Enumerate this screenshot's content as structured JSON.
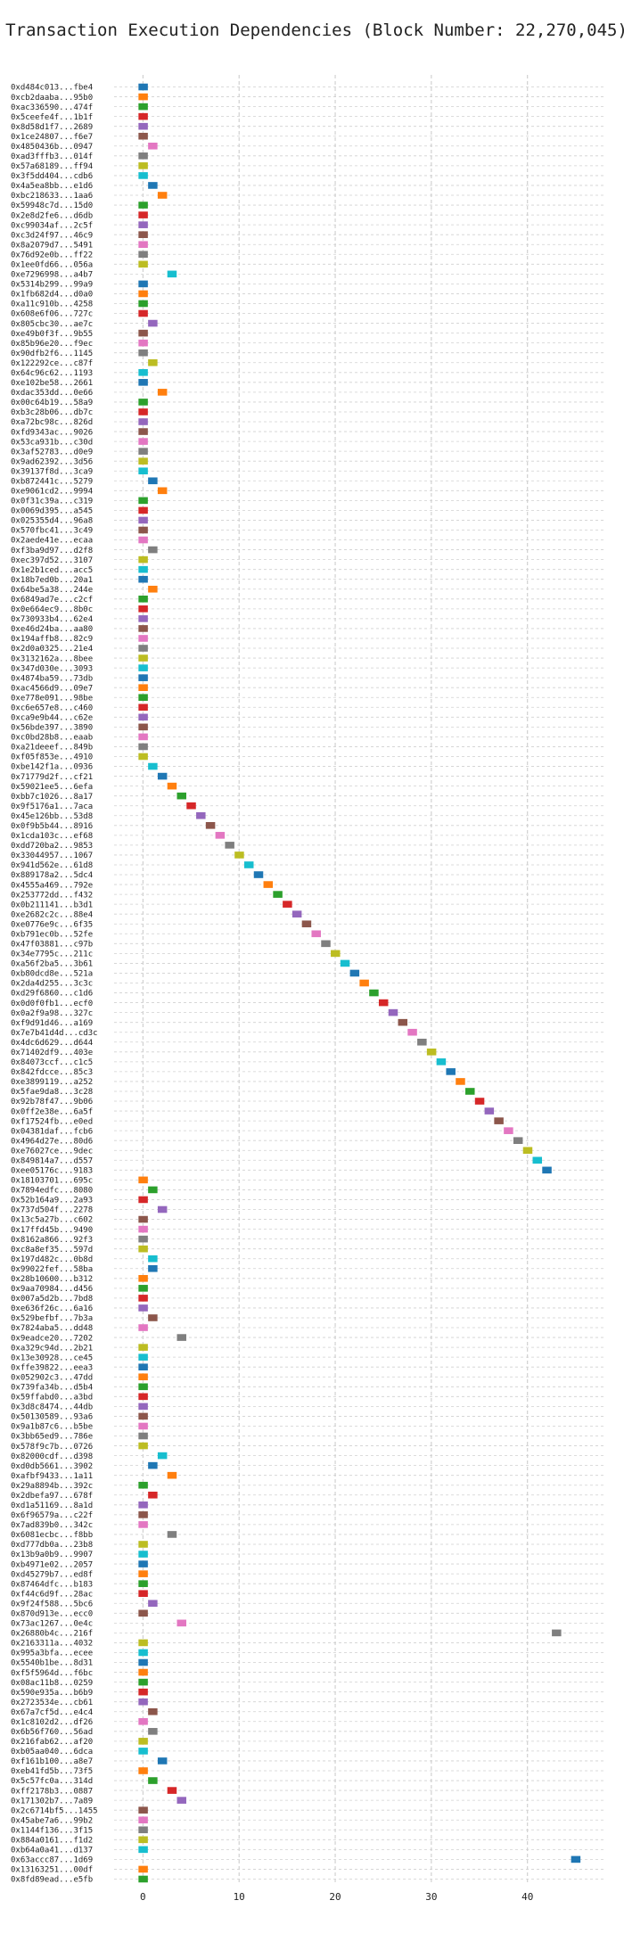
{
  "chart_data": {
    "type": "bar",
    "orientation": "horizontal",
    "title": "Transaction Execution Dependencies (Block Number: 22,270,045)",
    "xlabel": "",
    "ylabel": "",
    "xlim": [
      -3,
      48
    ],
    "xticks": [
      0,
      10,
      20,
      30,
      40
    ],
    "grid": true,
    "legend": "none",
    "palette": [
      "#1f77b4",
      "#ff7f0e",
      "#2ca02c",
      "#d62728",
      "#9467bd",
      "#8c564b",
      "#e377c2",
      "#7f7f7f",
      "#bcbd22",
      "#17becf"
    ],
    "categories": [
      "0xd484c013...fbe4",
      "0xcb2daaba...95b0",
      "0xac336590...474f",
      "0x5ceefe4f...1b1f",
      "0x8d58d1f7...2689",
      "0x1ce24807...f6e7",
      "0x4850436b...0947",
      "0xad3fffb3...014f",
      "0x57a68189...ff94",
      "0x3f5dd404...cdb6",
      "0x4a5ea8bb...e1d6",
      "0xbc218633...1aa6",
      "0x59948c7d...15d0",
      "0x2e8d2fe6...d6db",
      "0xc99034af...2c5f",
      "0xc3d24f97...46c9",
      "0x8a2079d7...5491",
      "0x76d92e0b...ff22",
      "0x1ee0fd66...056a",
      "0xe7296998...a4b7",
      "0x5314b299...99a9",
      "0x1fb682d4...d0a0",
      "0xa11c910b...4258",
      "0x608e6f06...727c",
      "0x805cbc30...ae7c",
      "0xe49b0f3f...9b55",
      "0x85b96e20...f9ec",
      "0x90dfb2f6...1145",
      "0x122292ce...c87f",
      "0x64c96c62...1193",
      "0xe102be58...2661",
      "0xdac353dd...0e66",
      "0x00c64b19...58a9",
      "0xb3c28b06...db7c",
      "0xa72bc98c...826d",
      "0xfd9343ac...9026",
      "0x53ca931b...c30d",
      "0x3af52783...d0e9",
      "0x9ad62392...3d56",
      "0x39137f8d...3ca9",
      "0xb872441c...5279",
      "0xe9061cd2...9994",
      "0x0f31c39a...c319",
      "0x0069d395...a545",
      "0x025355d4...96a8",
      "0x570fbc41...3c49",
      "0x2aede41e...ecaa",
      "0xf3ba9d97...d2f8",
      "0xec397d52...3107",
      "0x1e2b1ced...acc5",
      "0x18b7ed0b...20a1",
      "0x64be5a38...244e",
      "0x6849ad7e...c2cf",
      "0x0e664ec9...8b0c",
      "0x730933b4...62e4",
      "0xe46d24ba...aa80",
      "0x194affb8...82c9",
      "0x2d0a0325...21e4",
      "0x3132162a...8bee",
      "0x347d030e...3093",
      "0x4874ba59...73db",
      "0xac4566d9...09e7",
      "0xe778e091...98be",
      "0xc6e657e8...c460",
      "0xca9e9b44...c62e",
      "0x56bde397...3890",
      "0xc0bd28b8...eaab",
      "0xa21deeef...849b",
      "0xf05f853e...4910",
      "0xbe142f1a...0936",
      "0x71779d2f...cf21",
      "0x59021ee5...6efa",
      "0xbb7c1026...8a17",
      "0x9f5176a1...7aca",
      "0x45e126bb...53d8",
      "0x0f9b5b44...8916",
      "0x1cda103c...ef68",
      "0xdd720ba2...9853",
      "0x33044957...1067",
      "0x941d562e...61d8",
      "0x889178a2...5dc4",
      "0x4555a469...792e",
      "0x253772dd...f432",
      "0x0b211141...b3d1",
      "0xe2682c2c...88e4",
      "0xe0776e9c...6f35",
      "0xb791ec0b...52fe",
      "0x47f03881...c97b",
      "0x34e7795c...211c",
      "0xa56f2ba5...3b61",
      "0xb80dcd8e...521a",
      "0x2da4d255...3c3c",
      "0xd29f6860...c1d6",
      "0x0d0f0fb1...ecf0",
      "0x0a2f9a98...327c",
      "0xf9d91d46...a169",
      "0x7e7b41d4d...cd3c",
      "0x4dc6d629...d644",
      "0x71402df9...403e",
      "0x84073ccf...c1c5",
      "0x842fdcce...85c3",
      "0xe3899119...a252",
      "0x5fae9da8...3c28",
      "0x92b78f47...9b06",
      "0x0ff2e38e...6a5f",
      "0xf17524fb...e0ed",
      "0x04381daf...fcb6",
      "0x4964d27e...80d6",
      "0xe76027ce...9dec",
      "0x849814a7...d557",
      "0xee05176c...9183",
      "0x18103701...695c",
      "0x7894edfc...8080",
      "0x52b164a9...2a93",
      "0x737d504f...2278",
      "0x13c5a27b...c602",
      "0x17ffd45b...9490",
      "0x8162a866...92f3",
      "0xc8a8ef35...597d",
      "0x197d482c...0b8d",
      "0x99022fef...58ba",
      "0x28b10600...b312",
      "0x9aa70984...d456",
      "0x007a5d2b...7bd8",
      "0xe636f26c...6a16",
      "0x529befbf...7b3a",
      "0x7824aba5...dd48",
      "0x9eadce20...7202",
      "0xa329c94d...2b21",
      "0x13e30928...ce45",
      "0xffe39822...eea3",
      "0x052902c3...47dd",
      "0x739fa34b...d5b4",
      "0x59ffabd0...a3bd",
      "0x3d8c8474...44db",
      "0x50130589...93a6",
      "0x9a1b87c6...b5be",
      "0x3bb65ed9...786e",
      "0x578f9c7b...0726",
      "0x82000cdf...d398",
      "0xd0db5661...3902",
      "0xafbf9433...1a11",
      "0x29a8894b...392c",
      "0x2dbefa97...678f",
      "0xd1a51169...8a1d",
      "0x6f96579a...c22f",
      "0x7ad839b0...342c",
      "0x6081ecbc...f8bb",
      "0xd777db0a...23b8",
      "0x13b9a0b9...9907",
      "0xb4971e02...2057",
      "0xd45279b7...ed8f",
      "0x87464dfc...b183",
      "0xf44c6d9f...28ac",
      "0x9f24f588...5bc6",
      "0x870d913e...ecc0",
      "0x73ac1267...0e4c",
      "0x26880b4c...216f",
      "0x2163311a...4032",
      "0x995a3bfa...ecee",
      "0x5540b1be...8d31",
      "0xf5f5964d...f6bc",
      "0x08ac11b8...0259",
      "0x590e935a...b6b9",
      "0x2723534e...cb61",
      "0x67a7cf5d...e4c4",
      "0x1c8102d2...df26",
      "0x6b56f760...56ad",
      "0x216fab62...af20",
      "0xb05aa040...6dca",
      "0xf161b100...a8e7",
      "0xeb41fd5b...73f5",
      "0x5c57fc0a...314d",
      "0xff2178b3...0887",
      "0x171302b7...7a89",
      "0x2c6714bf5...1455",
      "0x45abe7a6...99b2",
      "0x1144f136...3f15",
      "0x884a0161...f1d2",
      "0xb64a0a41...d137",
      "0x63accc87...1d69",
      "0x13163251...00df",
      "0x8fd89ead...e5fb"
    ],
    "values": [
      0,
      0,
      0,
      0,
      0,
      0,
      1,
      0,
      0,
      0,
      1,
      2,
      0,
      0,
      0,
      0,
      0,
      0,
      0,
      3,
      0,
      0,
      0,
      0,
      1,
      0,
      0,
      0,
      1,
      0,
      0,
      2,
      0,
      0,
      0,
      0,
      0,
      0,
      0,
      0,
      1,
      2,
      0,
      0,
      0,
      0,
      0,
      1,
      0,
      0,
      0,
      1,
      0,
      0,
      0,
      0,
      0,
      0,
      0,
      0,
      0,
      0,
      0,
      0,
      0,
      0,
      0,
      0,
      0,
      1,
      2,
      3,
      4,
      5,
      6,
      7,
      8,
      9,
      10,
      11,
      12,
      13,
      14,
      15,
      16,
      17,
      18,
      19,
      20,
      21,
      22,
      23,
      24,
      25,
      26,
      27,
      28,
      29,
      30,
      31,
      32,
      33,
      34,
      35,
      36,
      37,
      38,
      39,
      40,
      41,
      42,
      0,
      1,
      0,
      2,
      0,
      0,
      0,
      0,
      1,
      1,
      0,
      0,
      0,
      0,
      1,
      0,
      4,
      0,
      0,
      0,
      0,
      0,
      0,
      0,
      0,
      0,
      0,
      0,
      2,
      1,
      3,
      0,
      1,
      0,
      0,
      0,
      3,
      0,
      0,
      0,
      0,
      0,
      0,
      1,
      0,
      4,
      43,
      0,
      0,
      0,
      0,
      0,
      0,
      0,
      1,
      0,
      1,
      0,
      0,
      2,
      0,
      1,
      3,
      4,
      0,
      0,
      0,
      0,
      0,
      45,
      0,
      0
    ]
  }
}
